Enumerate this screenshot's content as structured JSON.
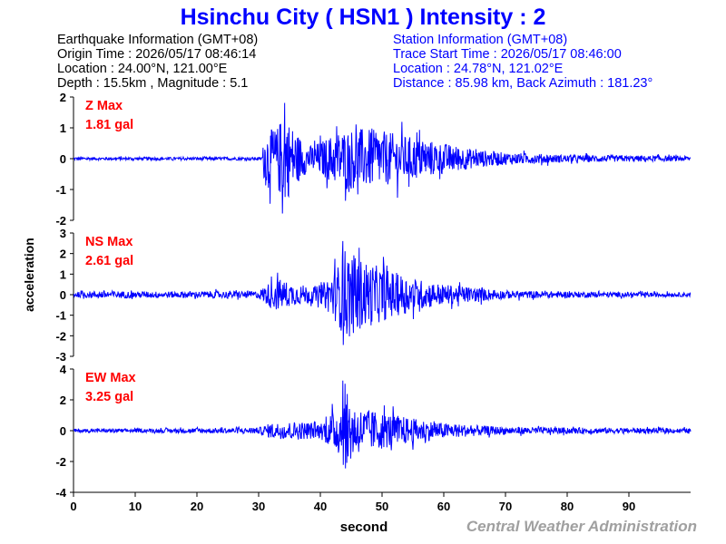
{
  "header": {
    "title": "Hsinchu City ( HSN1 ) Intensity : 2",
    "eq_info": {
      "heading": "Earthquake Information  (GMT+08)",
      "origin_time": "Origin Time : 2026/05/17 08:46:14",
      "location": "Location : 24.00°N, 121.00°E",
      "depth_mag": "Depth : 15.5km , Magnitude : 5.1"
    },
    "station_info": {
      "heading": "Station Information  (GMT+08)",
      "trace_start": "Trace Start Time : 2026/05/17 08:46:00",
      "location": "Location : 24.78°N, 121.02°E",
      "distance": "Distance : 85.98 km, Back Azimuth : 181.23°"
    }
  },
  "credit": "Central Weather Administration",
  "colors": {
    "title": "#0000ff",
    "info_left": "#000000",
    "info_right": "#0000ff",
    "trace": "#0000ff",
    "max_label": "#ff0000",
    "credit": "#a0a0a0"
  },
  "chart_data": {
    "type": "line",
    "xlabel": "second",
    "ylabel": "acceleration",
    "xlim": [
      0,
      100
    ],
    "x_ticks": [
      0,
      10,
      20,
      30,
      40,
      50,
      60,
      70,
      80,
      90
    ],
    "grid": false,
    "panels": [
      {
        "component": "Z",
        "max_label": "Z Max",
        "max_value": "1.81 gal",
        "ylim": [
          -2,
          2
        ],
        "y_ticks": [
          2,
          1,
          0,
          -1,
          -2
        ],
        "peak": 1.81,
        "envelope": [
          [
            0,
            0.05
          ],
          [
            30.5,
            0.05
          ],
          [
            31,
            0.9
          ],
          [
            33,
            1.0
          ],
          [
            34,
            1.5
          ],
          [
            36,
            0.9
          ],
          [
            38,
            0.4
          ],
          [
            40,
            0.55
          ],
          [
            43,
            0.9
          ],
          [
            46,
            1.0
          ],
          [
            50,
            0.9
          ],
          [
            55,
            0.7
          ],
          [
            60,
            0.5
          ],
          [
            65,
            0.3
          ],
          [
            70,
            0.2
          ],
          [
            80,
            0.12
          ],
          [
            90,
            0.1
          ],
          [
            100,
            0.08
          ]
        ]
      },
      {
        "component": "NS",
        "max_label": "NS Max",
        "max_value": "2.61 gal",
        "ylim": [
          -3,
          3
        ],
        "y_ticks": [
          3,
          2,
          1,
          0,
          -1,
          -2,
          -3
        ],
        "peak": 2.61,
        "envelope": [
          [
            0,
            0.12
          ],
          [
            5,
            0.2
          ],
          [
            10,
            0.15
          ],
          [
            30,
            0.18
          ],
          [
            31,
            0.45
          ],
          [
            33,
            0.8
          ],
          [
            36,
            0.5
          ],
          [
            40,
            0.4
          ],
          [
            43,
            1.5
          ],
          [
            44,
            2.3
          ],
          [
            46,
            1.8
          ],
          [
            50,
            1.3
          ],
          [
            55,
            0.8
          ],
          [
            60,
            0.5
          ],
          [
            65,
            0.35
          ],
          [
            70,
            0.2
          ],
          [
            80,
            0.15
          ],
          [
            90,
            0.12
          ],
          [
            100,
            0.1
          ]
        ]
      },
      {
        "component": "EW",
        "max_label": "EW Max",
        "max_value": "3.25 gal",
        "ylim": [
          -4,
          4
        ],
        "y_ticks": [
          4,
          2,
          0,
          -2,
          -4
        ],
        "peak": 3.25,
        "envelope": [
          [
            0,
            0.12
          ],
          [
            10,
            0.12
          ],
          [
            30,
            0.2
          ],
          [
            32,
            0.5
          ],
          [
            36,
            0.6
          ],
          [
            40,
            0.5
          ],
          [
            43,
            1.6
          ],
          [
            44,
            2.6
          ],
          [
            46,
            1.5
          ],
          [
            50,
            1.2
          ],
          [
            55,
            0.8
          ],
          [
            60,
            0.5
          ],
          [
            65,
            0.35
          ],
          [
            70,
            0.25
          ],
          [
            80,
            0.2
          ],
          [
            90,
            0.18
          ],
          [
            100,
            0.15
          ]
        ]
      }
    ]
  }
}
